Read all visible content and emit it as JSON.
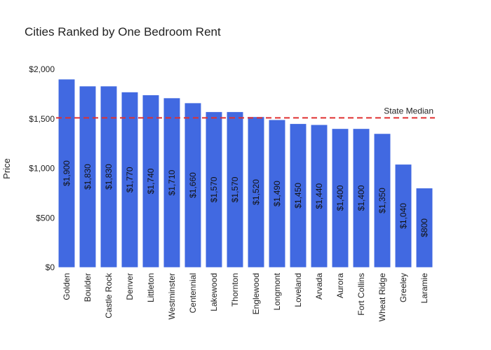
{
  "chart_data": {
    "type": "bar",
    "title": "Cities Ranked by One Bedroom Rent",
    "xlabel": "",
    "ylabel": "Price",
    "categories": [
      "Golden",
      "Boulder",
      "Castle Rock",
      "Denver",
      "Littleton",
      "Westminster",
      "Centennial",
      "Lakewood",
      "Thornton",
      "Englewood",
      "Longmont",
      "Loveland",
      "Arvada",
      "Aurora",
      "Fort Collins",
      "Wheat Ridge",
      "Greeley",
      "Laramie"
    ],
    "values": [
      1900,
      1830,
      1830,
      1770,
      1740,
      1710,
      1660,
      1570,
      1570,
      1520,
      1490,
      1450,
      1440,
      1400,
      1400,
      1350,
      1040,
      800
    ],
    "data_labels": [
      "$1,900",
      "$1,830",
      "$1,830",
      "$1,770",
      "$1,740",
      "$1,710",
      "$1,660",
      "$1,570",
      "$1,570",
      "$1,520",
      "$1,490",
      "$1,450",
      "$1,440",
      "$1,400",
      "$1,400",
      "$1,350",
      "$1,040",
      "$800"
    ],
    "ylim": [
      0,
      2000
    ],
    "yticks": [
      0,
      500,
      1000,
      1500,
      2000
    ],
    "ytick_labels": [
      "$0",
      "$500",
      "$1,000",
      "$1,500",
      "$2,000"
    ],
    "grid": false,
    "bar_color": "#4169e1",
    "reference_line": {
      "label": "State Median",
      "value": 1510,
      "color": "#e03030",
      "style": "dashed"
    }
  }
}
